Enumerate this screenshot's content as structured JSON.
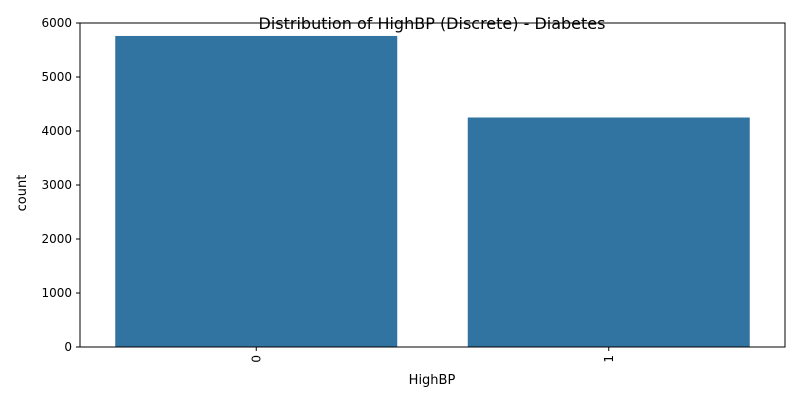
{
  "chart_data": {
    "type": "bar",
    "title": "Distribution of HighBP (Discrete) - Diabetes",
    "xlabel": "HighBP",
    "ylabel": "count",
    "categories": [
      "0",
      "1"
    ],
    "values": [
      5760,
      4250
    ],
    "ylim": [
      0,
      6000
    ],
    "yticks": [
      0,
      1000,
      2000,
      3000,
      4000,
      5000,
      6000
    ],
    "xtick_rotation": 90,
    "grid": false,
    "legend": "none",
    "bar_color": "#3274a1"
  }
}
